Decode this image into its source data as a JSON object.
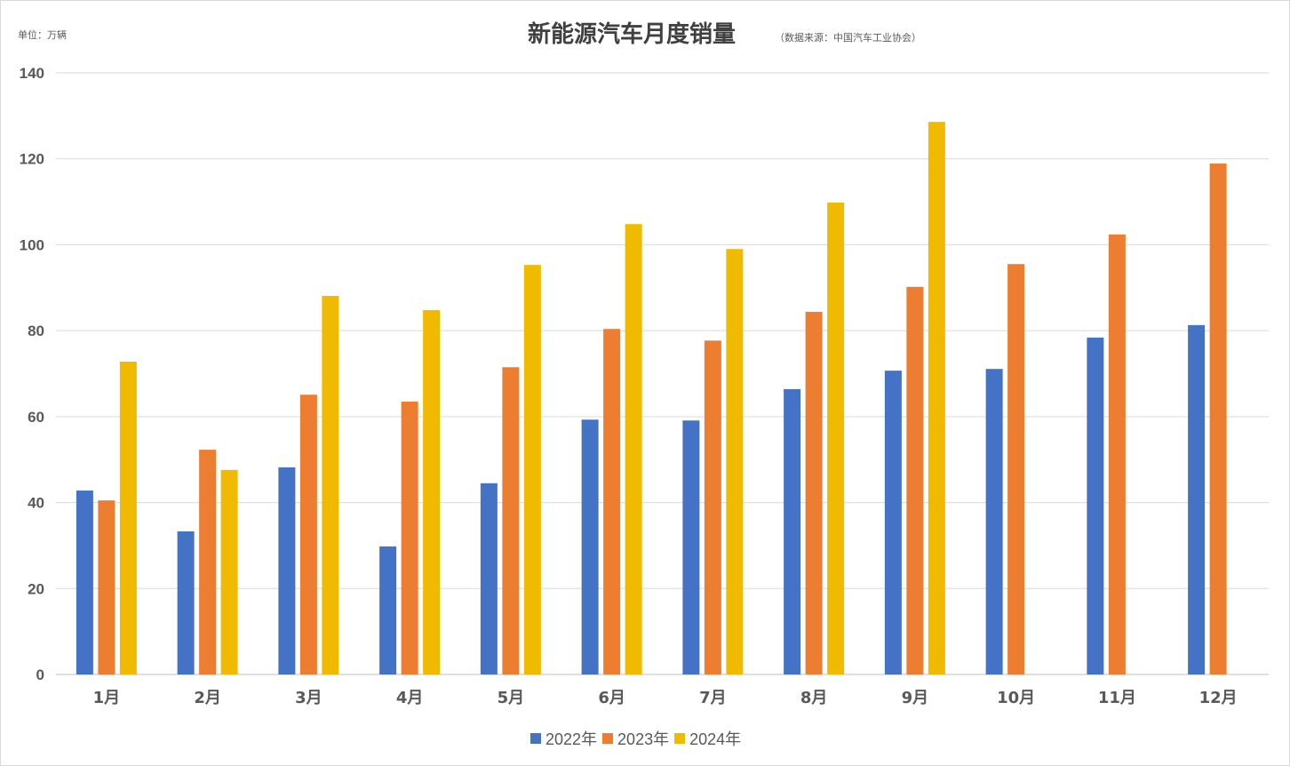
{
  "chart_data": {
    "type": "bar",
    "title": "新能源汽车月度销量",
    "subtitle": "（数据来源：中国汽车工业协会）",
    "unit_label": "单位：万辆",
    "categories": [
      "1月",
      "2月",
      "3月",
      "4月",
      "5月",
      "6月",
      "7月",
      "8月",
      "9月",
      "10月",
      "11月",
      "12月"
    ],
    "series": [
      {
        "name": "2022年",
        "color": "#4472C4",
        "values": [
          42.8,
          33.3,
          48.2,
          29.8,
          44.5,
          59.3,
          59.1,
          66.4,
          70.7,
          71.1,
          78.4,
          81.3
        ]
      },
      {
        "name": "2023年",
        "color": "#ED7D31",
        "values": [
          40.5,
          52.3,
          65.1,
          63.5,
          71.5,
          80.4,
          77.7,
          84.4,
          90.2,
          95.5,
          102.4,
          118.9
        ]
      },
      {
        "name": "2024年",
        "color": "#F0BA00",
        "values": [
          72.8,
          47.6,
          88.1,
          84.8,
          95.3,
          104.8,
          99.0,
          109.8,
          128.6,
          null,
          null,
          null
        ]
      }
    ],
    "ylim": [
      0,
      140
    ],
    "yticks": [
      0,
      20,
      40,
      60,
      80,
      100,
      120,
      140
    ],
    "grid": true,
    "legend": "bottom"
  }
}
